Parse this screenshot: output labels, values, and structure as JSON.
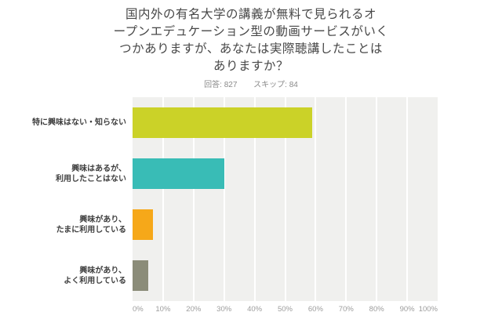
{
  "title_lines": [
    "国内外の有名大学の講義が無料で見られるオ",
    "ープンエデュケーション型の動画サービスがいく",
    "つかありますが、あなたは実際聴講したことは",
    "ありますか？"
  ],
  "stats": {
    "answered_label": "回答:",
    "answered_value": "827",
    "skipped_label": "スキップ:",
    "skipped_value": "84"
  },
  "chart_data": {
    "type": "bar",
    "orientation": "horizontal",
    "title": "国内外の有名大学の講義が無料で見られるオープンエデュケーション型の動画サービスがいくつかありますが、あなたは実際聴講したことはありますか？",
    "xlabel": "",
    "ylabel": "",
    "xlim": [
      0,
      100
    ],
    "x_tick_labels": [
      "0%",
      "10%",
      "20%",
      "30%",
      "40%",
      "50%",
      "60%",
      "70%",
      "80%",
      "90%",
      "100%"
    ],
    "grid": true,
    "legend": false,
    "categories": [
      "特に興味はない・知らない",
      "興味はあるが、\n利用したことはない",
      "興味があり、\nたまに利用している",
      "興味があり、\nよく利用している"
    ],
    "values": [
      58.8,
      30.0,
      6.6,
      5.1
    ],
    "bar_colors": [
      "#cbd228",
      "#39bcb6",
      "#f6a819",
      "#8b8c79"
    ],
    "plot_bg_color": "#f0f0ee",
    "gridline_color": "#ffffff"
  }
}
